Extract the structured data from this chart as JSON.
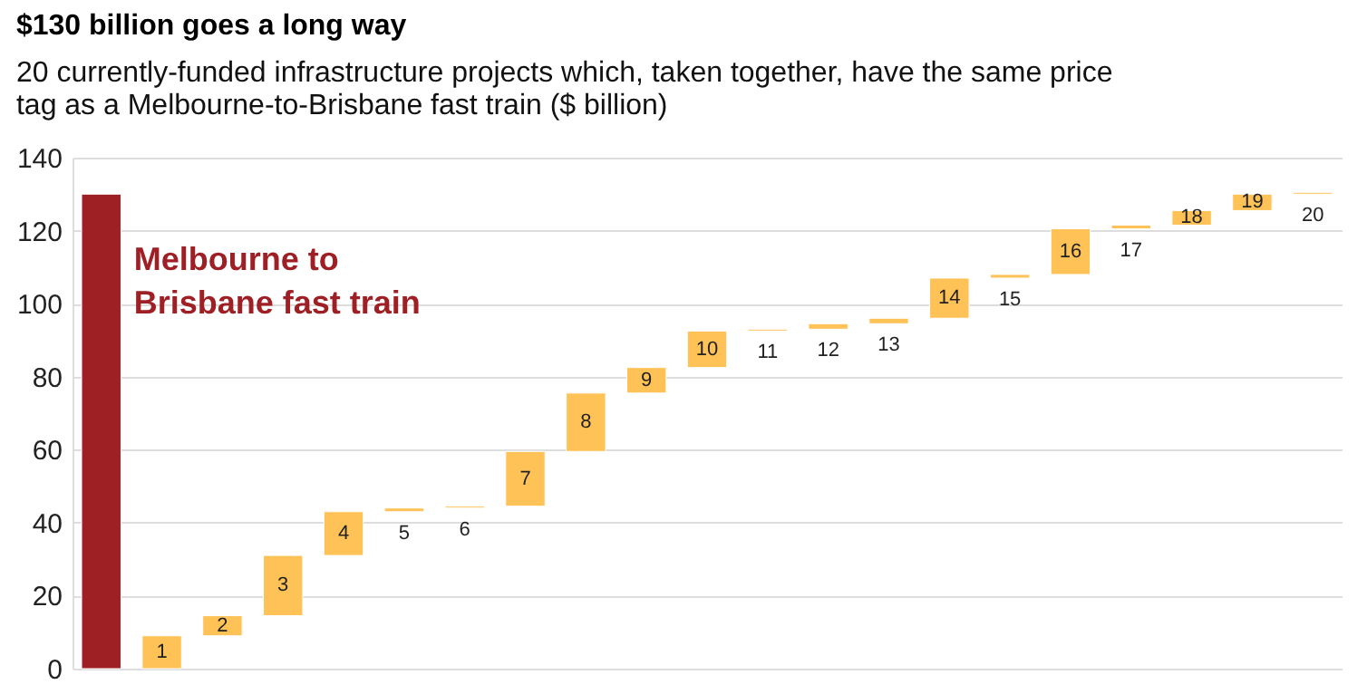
{
  "chart_data": {
    "type": "bar",
    "title": "$130 billion goes a long way",
    "subtitle": [
      "20 currently-funded infrastructure projects which, taken together, have the same price",
      "tag as a Melbourne-to-Brisbane fast train ($ billion)"
    ],
    "annotations": [
      "Melbourne to Brisbane fast train"
    ],
    "categories": [
      null,
      "1",
      "2",
      "3",
      "4",
      "5",
      "6",
      "7",
      "8",
      "9",
      "10",
      "11",
      "12",
      "13",
      "14",
      "15",
      "16",
      "17",
      "18",
      "19",
      "20"
    ],
    "values": [
      130,
      9,
      5.5,
      16.5,
      12,
      1,
      0.5,
      15,
      16,
      7,
      10,
      0.5,
      1.5,
      1.5,
      11,
      1,
      12.5,
      1,
      4,
      4.5,
      0.5
    ],
    "base": [
      0,
      0,
      9,
      14.5,
      31,
      43,
      44,
      44.5,
      59.5,
      75.5,
      82.5,
      92.5,
      93,
      94.5,
      96,
      107,
      108,
      120.5,
      121.5,
      125.5,
      130
    ],
    "colors": [
      "#9e1f24",
      "#ffc257",
      "#ffc257",
      "#ffc257",
      "#ffc257",
      "#ffc257",
      "#ffc257",
      "#ffc257",
      "#ffc257",
      "#ffc257",
      "#ffc257",
      "#ffc257",
      "#ffc257",
      "#ffc257",
      "#ffc257",
      "#ffc257",
      "#ffc257",
      "#ffc257",
      "#ffc257",
      "#ffc257",
      "#ffc257"
    ],
    "ylim": [
      0,
      140
    ],
    "yticks": [
      0,
      20,
      40,
      60,
      80,
      100,
      120,
      140
    ],
    "grid": "y",
    "tick_labels": "y"
  }
}
